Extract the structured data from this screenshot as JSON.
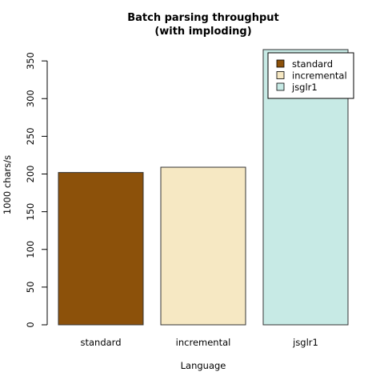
{
  "chart_data": {
    "type": "bar",
    "title": [
      "Batch parsing throughput",
      "(with imploding)"
    ],
    "xlabel": "Language",
    "ylabel": "1000 chars/s",
    "categories": [
      "standard",
      "incremental",
      "jsglr1"
    ],
    "values": [
      202,
      209,
      365
    ],
    "colors": [
      "#8c510a",
      "#f6e8c3",
      "#c7eae5"
    ],
    "ylim": [
      0,
      365
    ],
    "yticks": [
      0,
      50,
      100,
      150,
      200,
      250,
      300,
      350
    ],
    "grid": false,
    "legend": {
      "position": "top-right",
      "entries": [
        "standard",
        "incremental",
        "jsglr1"
      ]
    }
  }
}
